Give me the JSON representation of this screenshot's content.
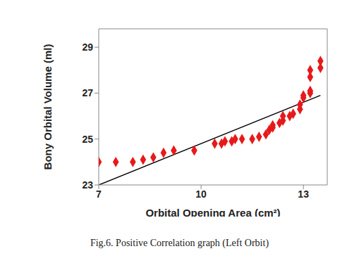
{
  "chart_data": {
    "type": "scatter",
    "caption": "Fig.6. Positive Correlation graph (Left Orbit)",
    "x_label": "Orbital Opening Area (cm²)",
    "y_label": "Bony Orbital Volume (ml)",
    "xlim": [
      7,
      13.7
    ],
    "xticks": [
      7,
      10,
      13
    ],
    "ylim": [
      23,
      29.8
    ],
    "yticks": [
      23,
      25,
      27,
      29
    ],
    "grid": false,
    "series": [
      {
        "type": "scatter",
        "color": "#e8191a",
        "marker": "diamond",
        "x": [
          7.0,
          7.5,
          8.0,
          8.3,
          8.6,
          8.9,
          9.2,
          9.8,
          10.4,
          10.6,
          10.7,
          10.9,
          11.0,
          11.2,
          11.5,
          11.7,
          11.9,
          12.0,
          12.1,
          12.1,
          12.3,
          12.4,
          12.4,
          12.6,
          12.7,
          12.9,
          12.9,
          13.0,
          13.0,
          13.2,
          13.2,
          13.2,
          13.2,
          13.5,
          13.5
        ],
        "values": [
          24.0,
          24.0,
          24.0,
          24.1,
          24.2,
          24.4,
          24.5,
          24.5,
          24.8,
          24.8,
          24.9,
          24.9,
          25.0,
          25.0,
          25.0,
          25.1,
          25.2,
          25.4,
          25.5,
          25.6,
          25.7,
          25.8,
          26.0,
          26.0,
          26.1,
          26.3,
          26.5,
          26.8,
          26.9,
          27.0,
          27.1,
          27.7,
          28.0,
          28.1,
          28.4
        ]
      },
      {
        "type": "line",
        "color": "#000000",
        "line_style": "solid",
        "x": [
          7,
          13.5
        ],
        "values": [
          23,
          26.9
        ]
      }
    ]
  }
}
